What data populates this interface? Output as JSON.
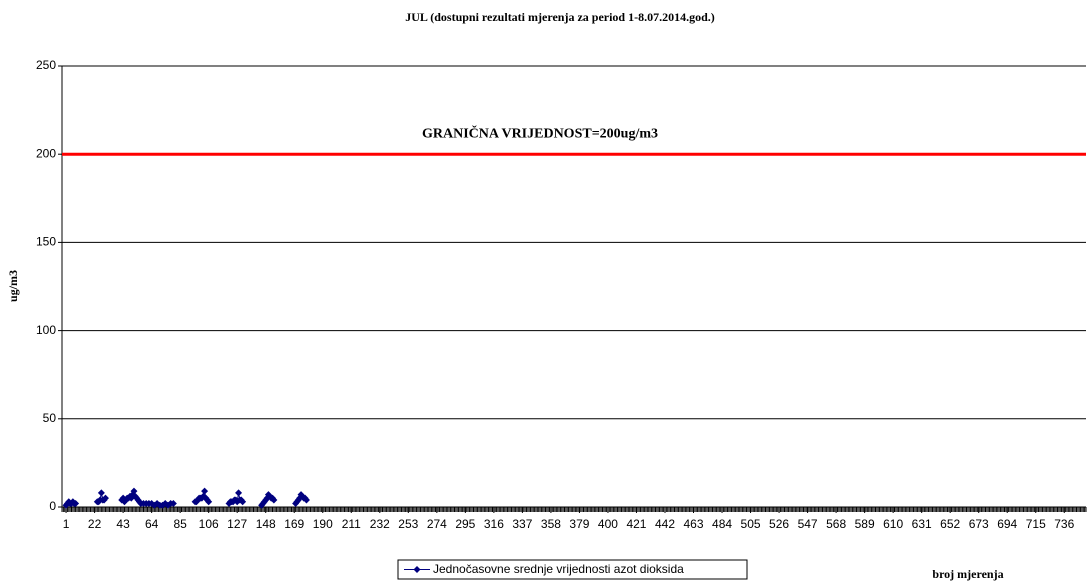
{
  "chart_data": {
    "type": "line",
    "title": "JUL (dostupni rezultati mjerenja za period 1-8.07.2014.god.)",
    "ylabel": "ug/m3",
    "xlabel": "broj mjerenja",
    "xlim": [
      -2,
      752
    ],
    "ylim": [
      0,
      250
    ],
    "yticks": [
      0,
      50,
      100,
      150,
      200,
      250
    ],
    "xticks": [
      1,
      22,
      43,
      64,
      85,
      106,
      127,
      148,
      169,
      190,
      211,
      232,
      253,
      274,
      295,
      316,
      337,
      358,
      379,
      400,
      421,
      442,
      463,
      484,
      505,
      526,
      547,
      568,
      589,
      610,
      631,
      652,
      673,
      694,
      715,
      736
    ],
    "grid": true,
    "threshold": {
      "value": 200,
      "label": "GRANIČNA VRIJEDNOST=200ug/m3",
      "color": "#ff0000"
    },
    "x": [
      1,
      2,
      3,
      4,
      5,
      6,
      7,
      8,
      15,
      24,
      25,
      26,
      27,
      28,
      29,
      30,
      36,
      42,
      43,
      44,
      45,
      46,
      47,
      48,
      49,
      50,
      51,
      52,
      53,
      54,
      55,
      56,
      58,
      60,
      62,
      64,
      66,
      68,
      70,
      72,
      74,
      76,
      78,
      80,
      88,
      96,
      97,
      98,
      99,
      100,
      101,
      102,
      103,
      104,
      105,
      106,
      114,
      121,
      122,
      123,
      124,
      125,
      126,
      127,
      128,
      129,
      130,
      131,
      139,
      145,
      146,
      147,
      148,
      149,
      150,
      151,
      152,
      153,
      154,
      162,
      170,
      171,
      172,
      173,
      174,
      175,
      176,
      177,
      178
    ],
    "series": [
      {
        "name": "Jednočasovne srednje vrijednosti azot dioksida",
        "color": "#000080",
        "values": [
          1,
          2,
          3,
          2,
          2,
          3,
          2,
          2,
          null,
          3,
          3,
          4,
          8,
          4,
          4,
          5,
          null,
          4,
          5,
          3,
          4,
          5,
          5,
          6,
          5,
          7,
          9,
          6,
          5,
          4,
          3,
          2,
          2,
          2,
          2,
          2,
          1,
          2,
          1,
          1,
          2,
          1,
          2,
          2,
          null,
          3,
          3,
          4,
          5,
          5,
          5,
          6,
          9,
          5,
          4,
          3,
          null,
          2,
          3,
          3,
          3,
          4,
          4,
          3,
          8,
          4,
          4,
          3,
          null,
          1,
          2,
          3,
          4,
          5,
          7,
          6,
          5,
          5,
          4,
          null,
          2,
          3,
          4,
          5,
          7,
          6,
          5,
          5,
          4
        ]
      }
    ],
    "legend": "bottom"
  }
}
